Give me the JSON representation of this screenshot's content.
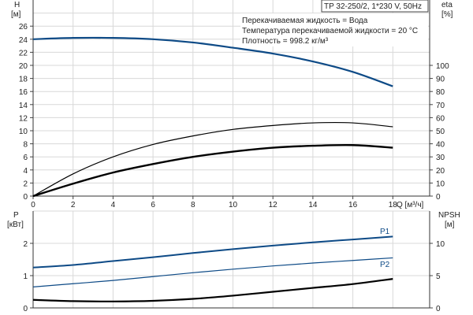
{
  "chart_data": [
    {
      "type": "line",
      "title": "TP 32-250/2, 1*230 V, 50Hz",
      "annotations": [
        "Перекачиваемая жидкость = Вода",
        "Температура перекачиваемой жидкости = 20 °C",
        "Плотность = 998.2 кг/м³"
      ],
      "xlabel": "Q [м³/ч]",
      "ylabel_left": "H",
      "ylabel_left_unit": "[м]",
      "ylabel_right": "eta",
      "ylabel_right_unit": "[%]",
      "xlim": [
        0,
        19.8
      ],
      "ylim_left": [
        0,
        30
      ],
      "ylim_right": [
        0,
        150
      ],
      "x_ticks": [
        "0",
        "2",
        "4",
        "6",
        "8",
        "10",
        "12",
        "14",
        "16",
        "18"
      ],
      "y_ticks_left": [
        "0",
        "2",
        "4",
        "6",
        "8",
        "10",
        "12",
        "14",
        "16",
        "18",
        "20",
        "22",
        "24",
        "26"
      ],
      "y_ticks_right": [
        "0",
        "10",
        "20",
        "30",
        "40",
        "50",
        "60",
        "70",
        "80",
        "90",
        "100"
      ],
      "grid": true,
      "x": [
        0,
        2,
        4,
        6,
        8,
        10,
        12,
        14,
        16,
        18
      ],
      "series": [
        {
          "axis": "left",
          "color": "#0d4a86",
          "values": [
            24.0,
            24.2,
            24.2,
            24.0,
            23.5,
            22.7,
            21.8,
            20.6,
            19.0,
            16.8
          ]
        },
        {
          "axis": "right",
          "color": "#000000",
          "values": [
            0,
            17,
            30,
            39.5,
            46,
            51,
            54,
            56,
            56,
            53
          ]
        },
        {
          "axis": "right",
          "color": "#000000",
          "values": [
            0,
            9.5,
            18,
            24.5,
            30,
            34,
            37,
            38.5,
            39,
            37
          ]
        }
      ]
    },
    {
      "type": "line",
      "ylabel_left": "P",
      "ylabel_left_unit": "[кВт]",
      "ylabel_right": "NPSH",
      "ylabel_right_unit": "[м]",
      "xlim": [
        0,
        19.8
      ],
      "ylim_left": [
        0,
        3
      ],
      "ylim_right": [
        0,
        15
      ],
      "y_ticks_left": [
        "0",
        "1",
        "2"
      ],
      "y_ticks_right": [
        "0",
        "5",
        "10"
      ],
      "grid": true,
      "x": [
        0,
        2,
        4,
        6,
        8,
        10,
        12,
        14,
        16,
        18
      ],
      "series": [
        {
          "name": "P1",
          "axis": "left",
          "color": "#0d4a86",
          "values": [
            1.25,
            1.33,
            1.45,
            1.57,
            1.7,
            1.82,
            1.93,
            2.03,
            2.12,
            2.21
          ]
        },
        {
          "name": "P2",
          "axis": "left",
          "color": "#0d4a86",
          "values": [
            0.65,
            0.75,
            0.85,
            0.97,
            1.09,
            1.2,
            1.3,
            1.39,
            1.47,
            1.55
          ]
        },
        {
          "axis": "right",
          "color": "#000000",
          "values": [
            1.25,
            1.05,
            1.0,
            1.1,
            1.4,
            1.9,
            2.5,
            3.1,
            3.7,
            4.5
          ]
        }
      ]
    }
  ]
}
